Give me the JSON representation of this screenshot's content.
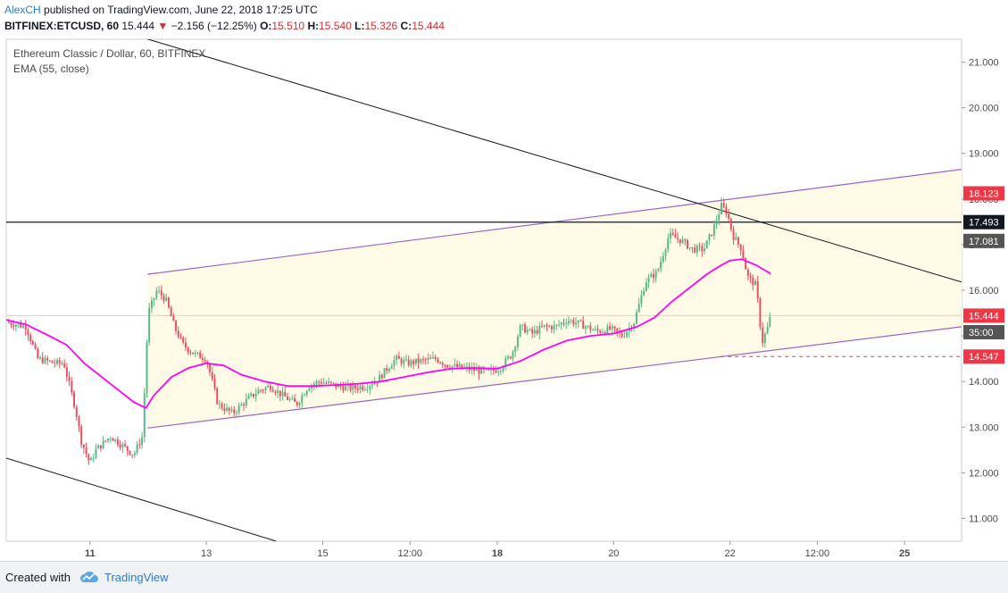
{
  "header": {
    "author": "AlexCH",
    "published": "published on TradingView.com, June 22, 2018 17:25 UTC",
    "symbol": "BITFINEX:ETCUSD, 60",
    "last": "15.444",
    "arrow": "▼",
    "change": "−2.156 (−12.25%)",
    "o_label": "O:",
    "o_value": "15.510",
    "h_label": "H:",
    "h_value": "15.540",
    "l_label": "L:",
    "l_value": "15.326",
    "c_label": "C:",
    "c_value": "15.444"
  },
  "legend": {
    "title": "Ethereum Classic / Dollar, 60, BITFINEX",
    "indicator": "EMA (55, close)"
  },
  "footer": {
    "created_with": "Created with",
    "brand": "TradingView"
  },
  "colors": {
    "up": "#53b987",
    "down": "#eb4d5c",
    "ema": "#ff00ff",
    "channel": "#9c64c8",
    "channel_fill": "#fffbe6",
    "trendline": "#131722",
    "support": "#e53935",
    "label_red": "#f23645",
    "label_black": "#131722",
    "label_gray": "#555555",
    "current_price_line": "#f7c6c6"
  },
  "chart_data": {
    "type": "candlestick",
    "symbol": "ETCUSD",
    "exchange": "BITFINEX",
    "timeframe": "60",
    "y_ticks": [
      11,
      12,
      13,
      14,
      15,
      16,
      17,
      18,
      19,
      20,
      21
    ],
    "y_tick_labels": [
      "11.000",
      "12.000",
      "13.000",
      "14.000",
      "15.000",
      "16.000",
      "17.000",
      "18.000",
      "19.000",
      "20.000",
      "21.000"
    ],
    "ylim": [
      10.5,
      21.5
    ],
    "x_ticks": [
      {
        "label": "11",
        "day": 11.0,
        "bold": true
      },
      {
        "label": "13",
        "day": 13.0,
        "bold": false
      },
      {
        "label": "15",
        "day": 15.0,
        "bold": false
      },
      {
        "label": "12:00",
        "day": 16.5,
        "bold": false
      },
      {
        "label": "18",
        "day": 18.0,
        "bold": true
      },
      {
        "label": "20",
        "day": 20.0,
        "bold": false
      },
      {
        "label": "22",
        "day": 22.0,
        "bold": false
      },
      {
        "label": "12:00",
        "day": 23.5,
        "bold": false
      },
      {
        "label": "25",
        "day": 25.0,
        "bold": true
      }
    ],
    "xlim": [
      9.56,
      25.98
    ],
    "price_labels": [
      {
        "text": "18.123",
        "value": 18.123,
        "style": "red"
      },
      {
        "text": "17.493",
        "value": 17.493,
        "style": "black"
      },
      {
        "text": "17.081",
        "value": 17.081,
        "style": "gray"
      },
      {
        "text": "15.444",
        "value": 15.444,
        "style": "red"
      },
      {
        "text": "35:00",
        "value": 15.08,
        "style": "gray"
      },
      {
        "text": "14.547",
        "value": 14.547,
        "style": "red"
      }
    ],
    "horizontal_line": 17.493,
    "current_price": 15.444,
    "support_line": {
      "value": 14.547,
      "from_day": 21.84,
      "to_day": 25.98
    },
    "channel": {
      "upper": [
        [
          11.99,
          16.35
        ],
        [
          25.98,
          18.65
        ]
      ],
      "lower": [
        [
          11.99,
          12.98
        ],
        [
          25.98,
          15.2
        ]
      ],
      "fill_from_day": 11.99
    },
    "trendlines": [
      {
        "from": [
          11.08,
          21.85
        ],
        "to": [
          25.98,
          16.18
        ]
      },
      {
        "from": [
          9.56,
          12.32
        ],
        "to": [
          14.2,
          10.5
        ]
      }
    ],
    "anchor_points": [
      {
        "day": 9.56,
        "price": 15.3
      },
      {
        "day": 9.9,
        "price": 15.2
      },
      {
        "day": 10.1,
        "price": 14.5
      },
      {
        "day": 10.4,
        "price": 14.4
      },
      {
        "day": 10.55,
        "price": 14.4
      },
      {
        "day": 10.75,
        "price": 13.4
      },
      {
        "day": 10.85,
        "price": 12.7
      },
      {
        "day": 11.0,
        "price": 12.2
      },
      {
        "day": 11.1,
        "price": 12.5
      },
      {
        "day": 11.35,
        "price": 12.8
      },
      {
        "day": 11.55,
        "price": 12.6
      },
      {
        "day": 11.75,
        "price": 12.4
      },
      {
        "day": 11.9,
        "price": 12.8
      },
      {
        "day": 12.0,
        "price": 15.5
      },
      {
        "day": 12.15,
        "price": 16.0
      },
      {
        "day": 12.3,
        "price": 15.8
      },
      {
        "day": 12.45,
        "price": 15.2
      },
      {
        "day": 12.6,
        "price": 14.8
      },
      {
        "day": 12.8,
        "price": 14.6
      },
      {
        "day": 13.0,
        "price": 14.5
      },
      {
        "day": 13.2,
        "price": 13.5
      },
      {
        "day": 13.45,
        "price": 13.3
      },
      {
        "day": 13.7,
        "price": 13.6
      },
      {
        "day": 13.9,
        "price": 13.8
      },
      {
        "day": 14.1,
        "price": 13.9
      },
      {
        "day": 14.3,
        "price": 13.7
      },
      {
        "day": 14.55,
        "price": 13.5
      },
      {
        "day": 14.75,
        "price": 13.9
      },
      {
        "day": 14.95,
        "price": 14.0
      },
      {
        "day": 15.25,
        "price": 13.9
      },
      {
        "day": 15.5,
        "price": 13.85
      },
      {
        "day": 15.75,
        "price": 13.9
      },
      {
        "day": 15.95,
        "price": 14.05
      },
      {
        "day": 16.25,
        "price": 14.5
      },
      {
        "day": 16.45,
        "price": 14.4
      },
      {
        "day": 16.7,
        "price": 14.45
      },
      {
        "day": 16.95,
        "price": 14.5
      },
      {
        "day": 17.15,
        "price": 14.35
      },
      {
        "day": 17.4,
        "price": 14.3
      },
      {
        "day": 17.6,
        "price": 14.25
      },
      {
        "day": 17.85,
        "price": 14.2
      },
      {
        "day": 18.05,
        "price": 14.3
      },
      {
        "day": 18.25,
        "price": 14.6
      },
      {
        "day": 18.4,
        "price": 15.2
      },
      {
        "day": 18.6,
        "price": 15.05
      },
      {
        "day": 18.8,
        "price": 15.2
      },
      {
        "day": 19.0,
        "price": 15.2
      },
      {
        "day": 19.2,
        "price": 15.35
      },
      {
        "day": 19.45,
        "price": 15.25
      },
      {
        "day": 19.7,
        "price": 15.1
      },
      {
        "day": 19.95,
        "price": 15.15
      },
      {
        "day": 20.15,
        "price": 15.0
      },
      {
        "day": 20.35,
        "price": 15.3
      },
      {
        "day": 20.55,
        "price": 16.2
      },
      {
        "day": 20.75,
        "price": 16.4
      },
      {
        "day": 20.95,
        "price": 17.2
      },
      {
        "day": 21.15,
        "price": 17.1
      },
      {
        "day": 21.35,
        "price": 16.9
      },
      {
        "day": 21.55,
        "price": 16.9
      },
      {
        "day": 21.7,
        "price": 17.3
      },
      {
        "day": 21.85,
        "price": 17.85
      },
      {
        "day": 21.95,
        "price": 17.7
      },
      {
        "day": 22.05,
        "price": 17.2
      },
      {
        "day": 22.2,
        "price": 16.9
      },
      {
        "day": 22.3,
        "price": 16.3
      },
      {
        "day": 22.45,
        "price": 16.1
      },
      {
        "day": 22.55,
        "price": 14.85
      },
      {
        "day": 22.65,
        "price": 15.2
      },
      {
        "day": 22.7,
        "price": 15.444
      }
    ],
    "ema_points": [
      {
        "day": 9.56,
        "price": 15.35
      },
      {
        "day": 9.9,
        "price": 15.25
      },
      {
        "day": 10.3,
        "price": 15.0
      },
      {
        "day": 10.6,
        "price": 14.8
      },
      {
        "day": 10.9,
        "price": 14.4
      },
      {
        "day": 11.2,
        "price": 14.1
      },
      {
        "day": 11.5,
        "price": 13.8
      },
      {
        "day": 11.75,
        "price": 13.55
      },
      {
        "day": 11.96,
        "price": 13.42
      },
      {
        "day": 12.1,
        "price": 13.7
      },
      {
        "day": 12.4,
        "price": 14.1
      },
      {
        "day": 12.7,
        "price": 14.3
      },
      {
        "day": 13.0,
        "price": 14.4
      },
      {
        "day": 13.3,
        "price": 14.35
      },
      {
        "day": 13.6,
        "price": 14.15
      },
      {
        "day": 14.0,
        "price": 14.0
      },
      {
        "day": 14.4,
        "price": 13.9
      },
      {
        "day": 14.8,
        "price": 13.9
      },
      {
        "day": 15.2,
        "price": 13.92
      },
      {
        "day": 15.6,
        "price": 13.95
      },
      {
        "day": 16.0,
        "price": 14.0
      },
      {
        "day": 16.4,
        "price": 14.1
      },
      {
        "day": 16.8,
        "price": 14.2
      },
      {
        "day": 17.2,
        "price": 14.28
      },
      {
        "day": 17.6,
        "price": 14.3
      },
      {
        "day": 18.0,
        "price": 14.28
      },
      {
        "day": 18.4,
        "price": 14.45
      },
      {
        "day": 18.8,
        "price": 14.7
      },
      {
        "day": 19.2,
        "price": 14.9
      },
      {
        "day": 19.6,
        "price": 15.0
      },
      {
        "day": 20.0,
        "price": 15.05
      },
      {
        "day": 20.4,
        "price": 15.2
      },
      {
        "day": 20.7,
        "price": 15.4
      },
      {
        "day": 21.0,
        "price": 15.75
      },
      {
        "day": 21.3,
        "price": 16.05
      },
      {
        "day": 21.6,
        "price": 16.35
      },
      {
        "day": 21.85,
        "price": 16.55
      },
      {
        "day": 22.0,
        "price": 16.65
      },
      {
        "day": 22.2,
        "price": 16.68
      },
      {
        "day": 22.45,
        "price": 16.55
      },
      {
        "day": 22.7,
        "price": 16.36
      }
    ]
  }
}
